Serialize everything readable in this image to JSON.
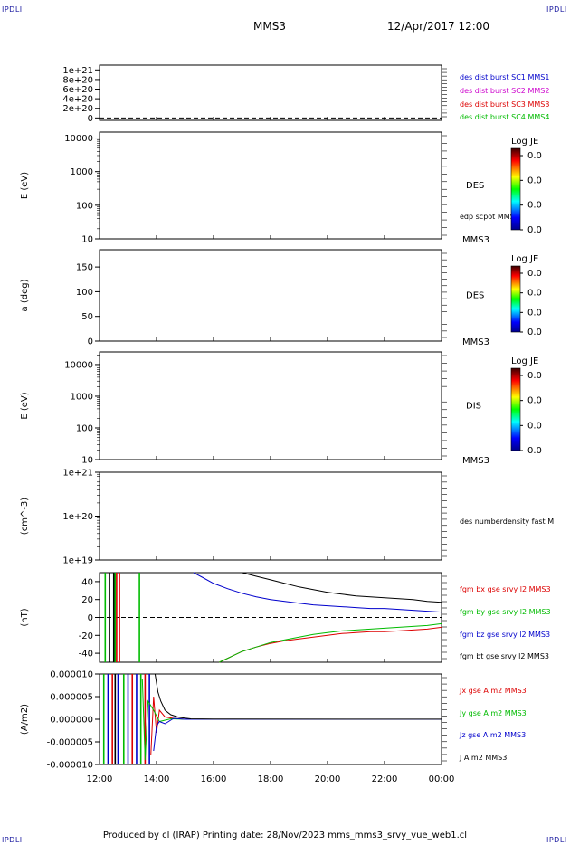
{
  "header": {
    "spacecraft": "MMS3",
    "datetime": "12/Apr/2017 12:00",
    "corner_label": "IPDLI"
  },
  "footer": {
    "text": "Produced by cl (IRAP)   Printing date: 28/Nov/2023   mms_mms3_srvy_vue_web1.cl"
  },
  "colorbar": {
    "title": "Log JE",
    "tick_labels": [
      "0.0",
      "0.0",
      "0.0",
      "0.0"
    ]
  },
  "time_axis": {
    "tick_labels": [
      "12:00",
      "14:00",
      "16:00",
      "18:00",
      "20:00",
      "22:00",
      "00:00"
    ],
    "range_hours": [
      0,
      12
    ]
  },
  "panels": [
    {
      "id": "p1",
      "ylabel": "",
      "yscale": "linear",
      "ylim": [
        -5e+19,
        1.1e+21
      ],
      "ticks": [
        {
          "v": 0,
          "t": "0"
        },
        {
          "v": 2e+20,
          "t": "2e+20"
        },
        {
          "v": 4e+20,
          "t": "4e+20"
        },
        {
          "v": 6e+20,
          "t": "6e+20"
        },
        {
          "v": 8e+20,
          "t": "8e+20"
        },
        {
          "v": 1e+21,
          "t": "1e+21"
        }
      ],
      "dashed_zero": true,
      "legend": [
        {
          "text": "des dist burst SC1 MMS1",
          "color": "#0000cc"
        },
        {
          "text": "des dist burst SC2 MMS2",
          "color": "#cc00cc"
        },
        {
          "text": "des dist burst SC3 MMS3",
          "color": "#dd0000"
        },
        {
          "text": "des dist burst SC4 MMS4",
          "color": "#00bb00"
        }
      ]
    },
    {
      "id": "p2",
      "ylabel": "E (eV)",
      "yscale": "log",
      "ylim": [
        10,
        15000
      ],
      "ticks": [
        {
          "v": 10,
          "t": "10"
        },
        {
          "v": 100,
          "t": "100"
        },
        {
          "v": 1000,
          "t": "1000"
        },
        {
          "v": 10000,
          "t": "10000"
        }
      ],
      "instrument": "DES",
      "spacecraft": "MMS3",
      "note": "edp scpot MMS3",
      "colorbar": true
    },
    {
      "id": "p3",
      "ylabel": "a (deg)",
      "yscale": "linear",
      "ylim": [
        0,
        185
      ],
      "ticks": [
        {
          "v": 0,
          "t": "0"
        },
        {
          "v": 50,
          "t": "50"
        },
        {
          "v": 100,
          "t": "100"
        },
        {
          "v": 150,
          "t": "150"
        }
      ],
      "instrument": "DES",
      "spacecraft": "MMS3",
      "colorbar": true
    },
    {
      "id": "p4",
      "ylabel": "E (eV)",
      "yscale": "log",
      "ylim": [
        10,
        25000
      ],
      "ticks": [
        {
          "v": 10,
          "t": "10"
        },
        {
          "v": 100,
          "t": "100"
        },
        {
          "v": 1000,
          "t": "1000"
        },
        {
          "v": 10000,
          "t": "10000"
        }
      ],
      "instrument": "DIS",
      "spacecraft": "MMS3",
      "colorbar": true
    },
    {
      "id": "p5",
      "ylabel": "(cm^-3)",
      "yscale": "log",
      "ylim": [
        1e+19,
        1e+21
      ],
      "ticks": [
        {
          "v": 1e+19,
          "t": "1e+19"
        },
        {
          "v": 1e+20,
          "t": "1e+20"
        },
        {
          "v": 1e+21,
          "t": "1e+21"
        }
      ],
      "legend": [
        {
          "text": "des numberdensity fast M",
          "color": "#000000"
        }
      ]
    },
    {
      "id": "p6",
      "ylabel": "(nT)",
      "yscale": "linear",
      "ylim": [
        -50,
        50
      ],
      "ticks": [
        {
          "v": -40,
          "t": "-40"
        },
        {
          "v": -20,
          "t": "-20"
        },
        {
          "v": 0,
          "t": "0"
        },
        {
          "v": 20,
          "t": "20"
        },
        {
          "v": 40,
          "t": "40"
        }
      ],
      "dashed_zero": true,
      "legend": [
        {
          "text": "fgm bx gse srvy l2 MMS3",
          "color": "#dd0000"
        },
        {
          "text": "fgm by gse srvy l2 MMS3",
          "color": "#00bb00"
        },
        {
          "text": "fgm bz gse srvy l2 MMS3",
          "color": "#0000cc"
        },
        {
          "text": "fgm bt gse srvy l2 MMS3",
          "color": "#000000"
        }
      ]
    },
    {
      "id": "p7",
      "ylabel": "(A/m2)",
      "yscale": "linear",
      "ylim": [
        -1e-05,
        1e-05
      ],
      "ticks": [
        {
          "v": -1e-05,
          "t": "-0.000010"
        },
        {
          "v": -5e-06,
          "t": "-0.000005"
        },
        {
          "v": 0,
          "t": "0.000000"
        },
        {
          "v": 5e-06,
          "t": "0.000005"
        },
        {
          "v": 1e-05,
          "t": "0.000010"
        }
      ],
      "legend": [
        {
          "text": "Jx gse A m2 MMS3",
          "color": "#dd0000"
        },
        {
          "text": "Jy gse A m2 MMS3",
          "color": "#00bb00"
        },
        {
          "text": "Jz gse A m2 MMS3",
          "color": "#0000cc"
        },
        {
          "text": "J A m2 MMS3",
          "color": "#000000"
        }
      ]
    }
  ],
  "chart_data": {
    "type": "line",
    "x_unit": "hours since 12:00 UT",
    "magnetic_field": {
      "panel": "p6",
      "series": [
        {
          "name": "fgm bx gse srvy l2 MMS3",
          "color": "#dd0000",
          "points": [
            [
              4.2,
              -50
            ],
            [
              4.6,
              -44
            ],
            [
              5.0,
              -38
            ],
            [
              5.5,
              -33
            ],
            [
              6.0,
              -29
            ],
            [
              6.5,
              -26
            ],
            [
              7.0,
              -24
            ],
            [
              7.5,
              -22
            ],
            [
              8.0,
              -20
            ],
            [
              8.5,
              -18
            ],
            [
              9.0,
              -17
            ],
            [
              9.5,
              -16
            ],
            [
              10.0,
              -16
            ],
            [
              10.5,
              -15
            ],
            [
              11.0,
              -14
            ],
            [
              11.5,
              -13
            ],
            [
              12.0,
              -11
            ]
          ]
        },
        {
          "name": "fgm by gse srvy l2 MMS3",
          "color": "#00bb00",
          "points": [
            [
              4.2,
              -50
            ],
            [
              4.6,
              -44
            ],
            [
              5.0,
              -38
            ],
            [
              5.5,
              -33
            ],
            [
              6.0,
              -28
            ],
            [
              6.5,
              -25
            ],
            [
              7.0,
              -22
            ],
            [
              7.5,
              -19
            ],
            [
              8.0,
              -17
            ],
            [
              8.5,
              -15
            ],
            [
              9.0,
              -14
            ],
            [
              9.5,
              -13
            ],
            [
              10.0,
              -12
            ],
            [
              10.5,
              -11
            ],
            [
              11.0,
              -10
            ],
            [
              11.5,
              -9
            ],
            [
              12.0,
              -7
            ]
          ]
        },
        {
          "name": "fgm bz gse srvy l2 MMS3",
          "color": "#0000cc",
          "points": [
            [
              3.3,
              50
            ],
            [
              3.6,
              45
            ],
            [
              4.0,
              38
            ],
            [
              4.5,
              32
            ],
            [
              5.0,
              27
            ],
            [
              5.5,
              23
            ],
            [
              6.0,
              20
            ],
            [
              6.5,
              18
            ],
            [
              7.0,
              16
            ],
            [
              7.5,
              14
            ],
            [
              8.0,
              13
            ],
            [
              8.5,
              12
            ],
            [
              9.0,
              11
            ],
            [
              9.5,
              10
            ],
            [
              10.0,
              10
            ],
            [
              10.5,
              9
            ],
            [
              11.0,
              8
            ],
            [
              11.5,
              7
            ],
            [
              12.0,
              6
            ]
          ]
        },
        {
          "name": "fgm bt gse srvy l2 MMS3",
          "color": "#000000",
          "points": [
            [
              5.0,
              50
            ],
            [
              5.5,
              46
            ],
            [
              6.0,
              42
            ],
            [
              6.5,
              38
            ],
            [
              7.0,
              34
            ],
            [
              7.5,
              31
            ],
            [
              8.0,
              28
            ],
            [
              8.5,
              26
            ],
            [
              9.0,
              24
            ],
            [
              9.5,
              23
            ],
            [
              10.0,
              22
            ],
            [
              10.5,
              21
            ],
            [
              11.0,
              20
            ],
            [
              11.5,
              18
            ],
            [
              12.0,
              17
            ]
          ]
        }
      ],
      "spikes": [
        {
          "x": 0.2,
          "color": "#00bb00"
        },
        {
          "x": 0.35,
          "color": "#000000"
        },
        {
          "x": 0.5,
          "color": "#000000"
        },
        {
          "x": 0.55,
          "color": "#00bb00"
        },
        {
          "x": 0.6,
          "color": "#dd0000"
        },
        {
          "x": 0.7,
          "color": "#dd0000"
        },
        {
          "x": 1.4,
          "color": "#00bb00"
        }
      ]
    },
    "current_density": {
      "panel": "p7",
      "series": [
        {
          "name": "Jx gse A m2 MMS3",
          "color": "#dd0000",
          "points": [
            [
              1.8,
              -8e-06
            ],
            [
              1.9,
              5e-06
            ],
            [
              2.0,
              -3e-06
            ],
            [
              2.1,
              2e-06
            ],
            [
              2.3,
              5e-07
            ],
            [
              2.6,
              2e-07
            ],
            [
              3.0,
              0
            ],
            [
              12.0,
              0
            ]
          ]
        },
        {
          "name": "Jy gse A m2 MMS3",
          "color": "#00bb00",
          "points": [
            [
              1.5,
              9e-06
            ],
            [
              1.6,
              -9e-06
            ],
            [
              1.7,
              4e-06
            ],
            [
              1.9,
              2e-06
            ],
            [
              2.1,
              -5e-07
            ],
            [
              2.5,
              1e-07
            ],
            [
              3.0,
              0
            ],
            [
              12.0,
              0
            ]
          ]
        },
        {
          "name": "Jz gse A m2 MMS3",
          "color": "#0000cc",
          "points": [
            [
              1.9,
              -7e-06
            ],
            [
              2.0,
              -1.5e-06
            ],
            [
              2.1,
              -5e-07
            ],
            [
              2.3,
              -1e-06
            ],
            [
              2.6,
              2e-07
            ],
            [
              3.0,
              0
            ],
            [
              12.0,
              0
            ]
          ]
        },
        {
          "name": "J A m2 MMS3",
          "color": "#000000",
          "points": [
            [
              1.95,
              1e-05
            ],
            [
              2.05,
              6e-06
            ],
            [
              2.15,
              4e-06
            ],
            [
              2.3,
              2e-06
            ],
            [
              2.5,
              1e-06
            ],
            [
              2.8,
              4e-07
            ],
            [
              3.2,
              1e-07
            ],
            [
              4.0,
              5e-08
            ],
            [
              12.0,
              3e-08
            ]
          ]
        }
      ],
      "spikes": [
        {
          "x": 0.15,
          "color": "#00bb00"
        },
        {
          "x": 0.3,
          "color": "#0000cc"
        },
        {
          "x": 0.45,
          "color": "#dd0000"
        },
        {
          "x": 0.55,
          "color": "#000000"
        },
        {
          "x": 0.65,
          "color": "#0000cc"
        },
        {
          "x": 0.85,
          "color": "#00bb00"
        },
        {
          "x": 1.0,
          "color": "#0000cc"
        },
        {
          "x": 1.15,
          "color": "#dd0000"
        },
        {
          "x": 1.3,
          "color": "#0000cc"
        },
        {
          "x": 1.45,
          "color": "#00bb00"
        },
        {
          "x": 1.6,
          "color": "#dd0000"
        },
        {
          "x": 1.75,
          "color": "#0000cc"
        }
      ]
    }
  }
}
